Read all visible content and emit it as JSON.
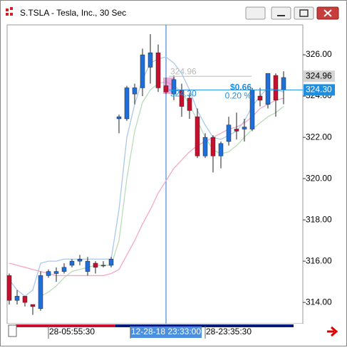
{
  "chart_data": {
    "type": "candlestick",
    "title": "S.TSLA - Tesla, Inc., 30 Sec",
    "up_color": "#1e6fd9",
    "down_color": "#c8102e",
    "categories": [
      null,
      null,
      null,
      null,
      null,
      null,
      null,
      null,
      "28-05:55:30",
      null,
      null,
      null,
      null,
      null,
      null,
      null,
      null,
      null,
      null,
      null,
      "12-28-18 23:33:00",
      null,
      null,
      null,
      null,
      null,
      null,
      null,
      "28-23:35:30",
      null,
      null,
      null,
      null,
      null,
      null,
      null
    ],
    "open": [
      315.3,
      314.1,
      314.3,
      313.9,
      313.7,
      315.3,
      315.4,
      315.5,
      315.8,
      316.0,
      315.5,
      315.9,
      315.8,
      315.8,
      322.9,
      322.9,
      324.1,
      324.4,
      325.4,
      326.1,
      324.5,
      324.1,
      324.3,
      323.9,
      323.0,
      321.1,
      322.0,
      321.1,
      321.8,
      322.4,
      322.4,
      322.4,
      324.0,
      323.6,
      325.0,
      324.3
    ],
    "high": [
      315.4,
      314.6,
      314.3,
      313.9,
      315.5,
      315.6,
      315.7,
      315.9,
      316.1,
      316.3,
      316.2,
      316.0,
      316.0,
      316.2,
      323.1,
      324.5,
      324.6,
      326.3,
      327.0,
      326.5,
      324.9,
      325.0,
      324.6,
      324.1,
      323.4,
      322.2,
      322.1,
      321.8,
      323.0,
      323.2,
      322.9,
      324.4,
      324.4,
      325.1,
      325.1,
      325.2
    ],
    "low": [
      313.9,
      313.9,
      313.8,
      313.4,
      313.6,
      315.2,
      315.0,
      315.4,
      315.7,
      315.8,
      315.3,
      315.4,
      315.7,
      315.7,
      322.2,
      322.8,
      323.6,
      324.0,
      324.6,
      324.2,
      324.1,
      323.8,
      323.0,
      322.9,
      321.0,
      321.0,
      320.3,
      320.5,
      321.6,
      321.9,
      321.8,
      322.3,
      323.5,
      323.4,
      323.0,
      323.6
    ],
    "close": [
      314.1,
      314.3,
      314.0,
      313.8,
      315.3,
      315.5,
      315.5,
      315.7,
      316.0,
      316.1,
      316.0,
      315.7,
      315.8,
      316.1,
      323.0,
      324.4,
      324.4,
      326.0,
      326.1,
      324.4,
      324.2,
      324.8,
      323.5,
      323.3,
      321.1,
      322.0,
      321.1,
      321.7,
      322.6,
      322.3,
      322.5,
      324.3,
      323.8,
      325.1,
      323.8,
      324.9
    ],
    "series": [
      {
        "color": "#a8c8ec",
        "values": [
          315.1,
          314.6,
          314.3,
          314.6,
          315.9,
          316.0,
          316.0,
          316.1,
          316.1,
          316.1,
          316.1,
          316.1,
          316.1,
          316.1,
          318.5,
          322.0,
          323.6,
          324.8,
          325.6,
          325.8,
          325.9,
          325.6,
          325.1,
          324.3,
          323.3,
          322.6,
          322.0,
          321.9,
          322.1,
          322.3,
          322.8,
          323.5,
          324.0,
          324.4,
          324.3,
          324.2
        ]
      },
      {
        "color": "#b9dcb9",
        "values": [
          null,
          null,
          null,
          null,
          314.3,
          314.5,
          314.8,
          315.2,
          315.5,
          315.6,
          315.7,
          315.8,
          315.8,
          315.8,
          317.0,
          320.0,
          322.3,
          323.7,
          324.3,
          324.6,
          324.7,
          324.5,
          324.2,
          323.6,
          322.8,
          322.0,
          321.4,
          321.2,
          321.3,
          321.6,
          322.0,
          322.4,
          322.7,
          323.0,
          323.2,
          323.5
        ]
      },
      {
        "color": "#f4a8c4",
        "values": [
          315.9,
          315.8,
          315.7,
          315.6,
          315.5,
          315.4,
          315.3,
          315.3,
          315.3,
          315.3,
          315.3,
          315.3,
          315.3,
          315.4,
          315.6,
          316.3,
          317.0,
          317.8,
          318.5,
          319.3,
          319.9,
          320.5,
          320.9,
          321.3,
          321.6,
          321.8,
          322.0,
          322.2,
          322.4,
          322.5,
          322.7,
          323.0,
          323.4,
          323.6,
          323.8,
          323.9
        ]
      }
    ],
    "ylim": [
      312.97,
      327.45
    ],
    "yticks": [
      {
        "value": 314,
        "label": "314.00"
      },
      {
        "value": 316,
        "label": "316.00"
      },
      {
        "value": 318,
        "label": "318.00"
      },
      {
        "value": 320,
        "label": "320.00"
      },
      {
        "value": 322,
        "label": "322.00"
      },
      {
        "value": 324,
        "label": "324.00"
      },
      {
        "value": 326,
        "label": "326.00"
      }
    ],
    "measure": {
      "start": 324.96,
      "end": {
        "value": 324.3,
        "label": "324.30"
      },
      "change": "$0.66",
      "percent": "0.20 %"
    },
    "price_tags": [
      {
        "value": 324.96,
        "color": "#d4d4d4"
      },
      {
        "value": 324.3,
        "label": "324.30",
        "color": "#1e8fe0"
      }
    ]
  }
}
